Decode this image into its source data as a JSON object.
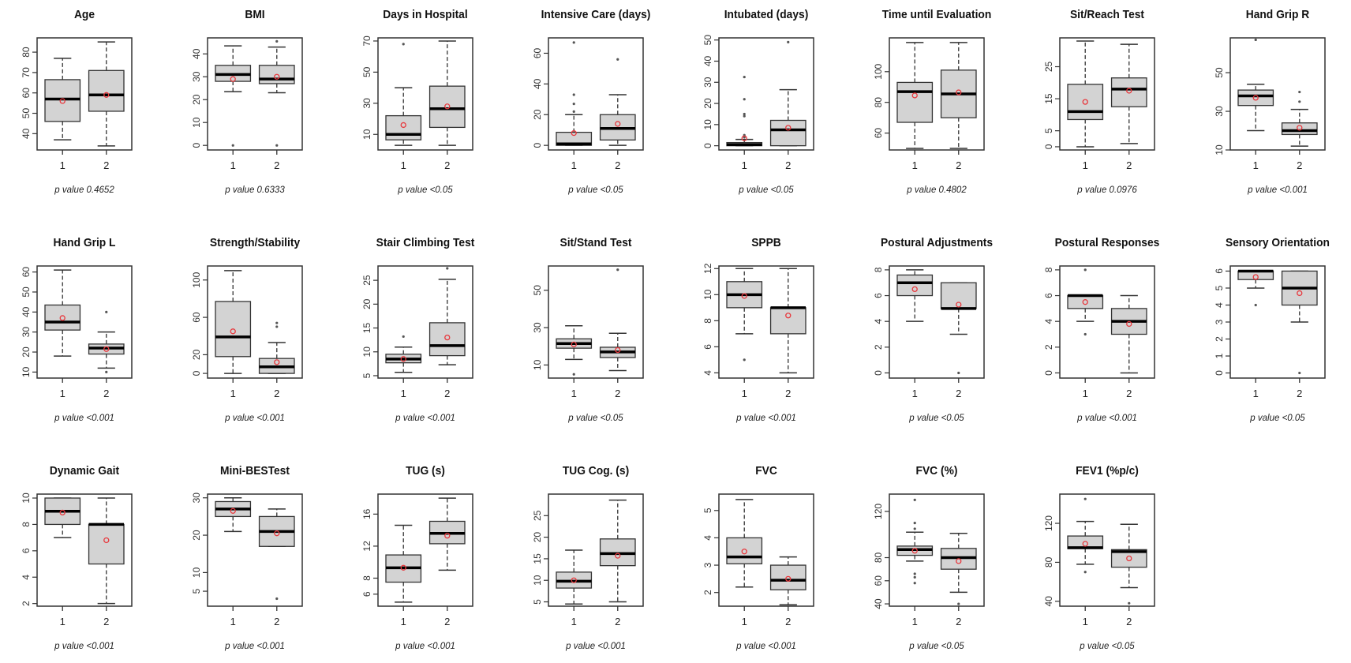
{
  "colors": {
    "box_fill": "#d3d3d3",
    "outline": "#333333",
    "median": "#000000",
    "mean_marker": "#e8383d",
    "outlier": "#555555"
  },
  "chart_data": [
    {
      "type": "box",
      "title": "Age",
      "p_value_label": "p value 0.4652",
      "categories": [
        "1",
        "2"
      ],
      "ylim": [
        32,
        87
      ],
      "yticks": [
        40,
        50,
        60,
        70,
        80
      ],
      "groups": [
        {
          "whisker_low": 37,
          "q1": 46,
          "median": 57,
          "q3": 66.5,
          "whisker_high": 77,
          "outliers": [],
          "mean": 56
        },
        {
          "whisker_low": 34,
          "q1": 51,
          "median": 59,
          "q3": 71,
          "whisker_high": 85,
          "outliers": [],
          "mean": 59
        }
      ]
    },
    {
      "type": "box",
      "title": "BMI",
      "p_value_label": "p value 0.6333",
      "categories": [
        "1",
        "2"
      ],
      "ylim": [
        -2,
        47
      ],
      "yticks": [
        0,
        10,
        20,
        30,
        40
      ],
      "groups": [
        {
          "whisker_low": 23.5,
          "q1": 28,
          "median": 31,
          "q3": 35,
          "whisker_high": 43.5,
          "outliers": [
            0
          ],
          "mean": 29
        },
        {
          "whisker_low": 23,
          "q1": 27,
          "median": 29,
          "q3": 35,
          "whisker_high": 43,
          "outliers": [
            0,
            45.5
          ],
          "mean": 30
        }
      ]
    },
    {
      "type": "box",
      "title": "Days in Hospital",
      "p_value_label": "p value <0.05",
      "categories": [
        "1",
        "2"
      ],
      "ylim": [
        0,
        72
      ],
      "yticks": [
        10,
        30,
        50,
        70
      ],
      "groups": [
        {
          "whisker_low": 3,
          "q1": 6.5,
          "median": 10,
          "q3": 22,
          "whisker_high": 40,
          "outliers": [
            68
          ],
          "mean": 16
        },
        {
          "whisker_low": 3,
          "q1": 14.5,
          "median": 26.5,
          "q3": 41,
          "whisker_high": 70,
          "outliers": [],
          "mean": 28
        }
      ]
    },
    {
      "type": "box",
      "title": "Intensive Care (days)",
      "p_value_label": "p value <0.05",
      "categories": [
        "1",
        "2"
      ],
      "ylim": [
        -3,
        70
      ],
      "yticks": [
        0,
        20,
        40,
        60
      ],
      "groups": [
        {
          "whisker_low": 0,
          "q1": 0,
          "median": 1,
          "q3": 8.5,
          "whisker_high": 20,
          "outliers": [
            22,
            27,
            33,
            67
          ],
          "mean": 8
        },
        {
          "whisker_low": 0,
          "q1": 3.5,
          "median": 11,
          "q3": 20,
          "whisker_high": 33,
          "outliers": [
            56
          ],
          "mean": 14
        }
      ]
    },
    {
      "type": "box",
      "title": "Intubated (days)",
      "p_value_label": "p value <0.05",
      "categories": [
        "1",
        "2"
      ],
      "ylim": [
        -2,
        51
      ],
      "yticks": [
        0,
        10,
        20,
        30,
        40,
        50
      ],
      "groups": [
        {
          "whisker_low": 0,
          "q1": 0,
          "median": 0.5,
          "q3": 1.5,
          "whisker_high": 3,
          "outliers": [
            4,
            5,
            14,
            15,
            22,
            32.5
          ],
          "mean": 3.5
        },
        {
          "whisker_low": 0,
          "q1": 0,
          "median": 7.5,
          "q3": 12,
          "whisker_high": 26.5,
          "outliers": [
            49
          ],
          "mean": 8.5
        }
      ]
    },
    {
      "type": "box",
      "title": "Time until Evaluation",
      "p_value_label": "p value 0.4802",
      "categories": [
        "1",
        "2"
      ],
      "ylim": [
        49,
        122
      ],
      "yticks": [
        60,
        80,
        100
      ],
      "groups": [
        {
          "whisker_low": 50,
          "q1": 67,
          "median": 87,
          "q3": 93,
          "whisker_high": 119,
          "outliers": [],
          "mean": 84.5
        },
        {
          "whisker_low": 50,
          "q1": 70,
          "median": 85.5,
          "q3": 101,
          "whisker_high": 119,
          "outliers": [],
          "mean": 86.5
        }
      ]
    },
    {
      "type": "box",
      "title": "Sit/Reach Test",
      "p_value_label": "p value 0.0976",
      "categories": [
        "1",
        "2"
      ],
      "ylim": [
        -1,
        34
      ],
      "yticks": [
        0,
        5,
        15,
        25
      ],
      "groups": [
        {
          "whisker_low": 0,
          "q1": 8.5,
          "median": 11,
          "q3": 19.5,
          "whisker_high": 33,
          "outliers": [],
          "mean": 14
        },
        {
          "whisker_low": 1,
          "q1": 12.5,
          "median": 18,
          "q3": 21.5,
          "whisker_high": 32,
          "outliers": [],
          "mean": 17.5
        }
      ]
    },
    {
      "type": "box",
      "title": "Hand Grip R",
      "p_value_label": "p value <0.001",
      "categories": [
        "1",
        "2"
      ],
      "ylim": [
        10,
        68
      ],
      "yticks": [
        10,
        30,
        50
      ],
      "groups": [
        {
          "whisker_low": 20,
          "q1": 33,
          "median": 38,
          "q3": 41,
          "whisker_high": 44,
          "outliers": [
            67
          ],
          "mean": 37
        },
        {
          "whisker_low": 12,
          "q1": 18,
          "median": 20,
          "q3": 24,
          "whisker_high": 31,
          "outliers": [
            35,
            40
          ],
          "mean": 21.5
        }
      ]
    },
    {
      "type": "box",
      "title": "Hand Grip L",
      "p_value_label": "p value <0.001",
      "categories": [
        "1",
        "2"
      ],
      "ylim": [
        7,
        63
      ],
      "yticks": [
        10,
        20,
        30,
        40,
        50,
        60
      ],
      "groups": [
        {
          "whisker_low": 18,
          "q1": 31,
          "median": 35,
          "q3": 43.5,
          "whisker_high": 61,
          "outliers": [],
          "mean": 37
        },
        {
          "whisker_low": 12,
          "q1": 19,
          "median": 22,
          "q3": 24,
          "whisker_high": 30,
          "outliers": [
            10,
            40
          ],
          "mean": 21.5
        }
      ]
    },
    {
      "type": "box",
      "title": "Strength/Stability",
      "p_value_label": "p value <0.001",
      "categories": [
        "1",
        "2"
      ],
      "ylim": [
        -5,
        115
      ],
      "yticks": [
        0,
        20,
        60,
        100
      ],
      "groups": [
        {
          "whisker_low": 0,
          "q1": 18,
          "median": 39,
          "q3": 77,
          "whisker_high": 110,
          "outliers": [],
          "mean": 45
        },
        {
          "whisker_low": 0,
          "q1": 0,
          "median": 7,
          "q3": 16,
          "whisker_high": 33,
          "outliers": [
            50,
            54
          ],
          "mean": 12
        }
      ]
    },
    {
      "type": "box",
      "title": "Stair Climbing Test",
      "p_value_label": "p value <0.001",
      "categories": [
        "1",
        "2"
      ],
      "ylim": [
        4.5,
        28
      ],
      "yticks": [
        5,
        10,
        15,
        20,
        25
      ],
      "groups": [
        {
          "whisker_low": 5.7,
          "q1": 7.7,
          "median": 8.5,
          "q3": 9.5,
          "whisker_high": 11,
          "outliers": [
            13.2
          ],
          "mean": 8.5
        },
        {
          "whisker_low": 7.3,
          "q1": 9.2,
          "median": 11.3,
          "q3": 16.1,
          "whisker_high": 25.2,
          "outliers": [
            27.5
          ],
          "mean": 13
        }
      ]
    },
    {
      "type": "box",
      "title": "Sit/Stand Test",
      "p_value_label": "p value <0.05",
      "categories": [
        "1",
        "2"
      ],
      "ylim": [
        3,
        63
      ],
      "yticks": [
        10,
        30,
        50
      ],
      "groups": [
        {
          "whisker_low": 13,
          "q1": 19,
          "median": 21.5,
          "q3": 24,
          "whisker_high": 31,
          "outliers": [
            5
          ],
          "mean": 21
        },
        {
          "whisker_low": 7,
          "q1": 14,
          "median": 17,
          "q3": 19.5,
          "whisker_high": 27,
          "outliers": [
            61
          ],
          "mean": 18
        }
      ]
    },
    {
      "type": "box",
      "title": "SPPB",
      "p_value_label": "p value <0.001",
      "categories": [
        "1",
        "2"
      ],
      "ylim": [
        3.6,
        12.2
      ],
      "yticks": [
        4,
        6,
        8,
        10,
        12
      ],
      "groups": [
        {
          "whisker_low": 7,
          "q1": 9,
          "median": 10,
          "q3": 11,
          "whisker_high": 12,
          "outliers": [
            5
          ],
          "mean": 9.9
        },
        {
          "whisker_low": 4,
          "q1": 7,
          "median": 9,
          "q3": 9,
          "whisker_high": 12,
          "outliers": [],
          "mean": 8.4
        }
      ]
    },
    {
      "type": "box",
      "title": "Postural Adjustments",
      "p_value_label": "p value <0.05",
      "categories": [
        "1",
        "2"
      ],
      "ylim": [
        -0.4,
        8.3
      ],
      "yticks": [
        0,
        2,
        4,
        6,
        8
      ],
      "groups": [
        {
          "whisker_low": 4,
          "q1": 6,
          "median": 7,
          "q3": 7.6,
          "whisker_high": 8,
          "outliers": [],
          "mean": 6.5
        },
        {
          "whisker_low": 3,
          "q1": 5,
          "median": 5,
          "q3": 7,
          "whisker_high": 7,
          "outliers": [
            0
          ],
          "mean": 5.3
        }
      ]
    },
    {
      "type": "box",
      "title": "Postural Responses",
      "p_value_label": "p value <0.001",
      "categories": [
        "1",
        "2"
      ],
      "ylim": [
        -0.4,
        8.3
      ],
      "yticks": [
        0,
        2,
        4,
        6,
        8
      ],
      "groups": [
        {
          "whisker_low": 4,
          "q1": 5,
          "median": 6,
          "q3": 6,
          "whisker_high": 6,
          "outliers": [
            3,
            8
          ],
          "mean": 5.5
        },
        {
          "whisker_low": 0,
          "q1": 3,
          "median": 4,
          "q3": 5,
          "whisker_high": 6,
          "outliers": [],
          "mean": 3.8
        }
      ]
    },
    {
      "type": "box",
      "title": "Sensory Orientation",
      "p_value_label": "p value <0.05",
      "categories": [
        "1",
        "2"
      ],
      "ylim": [
        -0.3,
        6.3
      ],
      "yticks": [
        0,
        1,
        2,
        3,
        4,
        5,
        6
      ],
      "groups": [
        {
          "whisker_low": 5,
          "q1": 5.5,
          "median": 6,
          "q3": 6,
          "whisker_high": 6,
          "outliers": [
            4
          ],
          "mean": 5.65
        },
        {
          "whisker_low": 3,
          "q1": 4,
          "median": 5,
          "q3": 6,
          "whisker_high": 6,
          "outliers": [
            0
          ],
          "mean": 4.7
        }
      ]
    },
    {
      "type": "box",
      "title": "Dynamic Gait",
      "p_value_label": "p value <0.001",
      "categories": [
        "1",
        "2"
      ],
      "ylim": [
        1.8,
        10.3
      ],
      "yticks": [
        2,
        4,
        6,
        8,
        10
      ],
      "groups": [
        {
          "whisker_low": 7,
          "q1": 8,
          "median": 9,
          "q3": 10,
          "whisker_high": 10,
          "outliers": [],
          "mean": 8.9
        },
        {
          "whisker_low": 2,
          "q1": 5,
          "median": 8,
          "q3": 8,
          "whisker_high": 10,
          "outliers": [],
          "mean": 6.8
        }
      ]
    },
    {
      "type": "box",
      "title": "Mini-BESTest",
      "p_value_label": "p value <0.001",
      "categories": [
        "1",
        "2"
      ],
      "ylim": [
        1,
        31
      ],
      "yticks": [
        5,
        10,
        20,
        30
      ],
      "groups": [
        {
          "whisker_low": 21,
          "q1": 25,
          "median": 27,
          "q3": 29,
          "whisker_high": 30,
          "outliers": [],
          "mean": 26.5
        },
        {
          "whisker_low": 17,
          "q1": 17,
          "median": 21,
          "q3": 25,
          "whisker_high": 27,
          "outliers": [
            3
          ],
          "mean": 20.5
        }
      ]
    },
    {
      "type": "box",
      "title": "TUG (s)",
      "p_value_label": "p value <0.001",
      "categories": [
        "1",
        "2"
      ],
      "ylim": [
        4.5,
        18.5
      ],
      "yticks": [
        6,
        8,
        12,
        16
      ],
      "groups": [
        {
          "whisker_low": 5,
          "q1": 7.5,
          "median": 9.3,
          "q3": 10.9,
          "whisker_high": 14.6,
          "outliers": [],
          "mean": 9.3
        },
        {
          "whisker_low": 9,
          "q1": 12.3,
          "median": 13.6,
          "q3": 15.1,
          "whisker_high": 18,
          "outliers": [],
          "mean": 13.3
        }
      ]
    },
    {
      "type": "box",
      "title": "TUG Cog. (s)",
      "p_value_label": "p value <0.001",
      "categories": [
        "1",
        "2"
      ],
      "ylim": [
        4,
        30
      ],
      "yticks": [
        5,
        10,
        15,
        20,
        25
      ],
      "groups": [
        {
          "whisker_low": 4.5,
          "q1": 8.2,
          "median": 9.8,
          "q3": 11.9,
          "whisker_high": 17,
          "outliers": [],
          "mean": 10
        },
        {
          "whisker_low": 5,
          "q1": 13.4,
          "median": 16.2,
          "q3": 19.6,
          "whisker_high": 28.6,
          "outliers": [],
          "mean": 15.7
        }
      ]
    },
    {
      "type": "box",
      "title": "FVC",
      "p_value_label": "p value <0.001",
      "categories": [
        "1",
        "2"
      ],
      "ylim": [
        1.5,
        5.6
      ],
      "yticks": [
        2,
        3,
        4,
        5
      ],
      "groups": [
        {
          "whisker_low": 2.2,
          "q1": 3.05,
          "median": 3.3,
          "q3": 4,
          "whisker_high": 5.4,
          "outliers": [],
          "mean": 3.5
        },
        {
          "whisker_low": 1.55,
          "q1": 2.1,
          "median": 2.45,
          "q3": 3,
          "whisker_high": 3.3,
          "outliers": [],
          "mean": 2.5
        }
      ]
    },
    {
      "type": "box",
      "title": "FVC (%)",
      "p_value_label": "p value <0.05",
      "categories": [
        "1",
        "2"
      ],
      "ylim": [
        38,
        135
      ],
      "yticks": [
        40,
        60,
        80,
        120
      ],
      "groups": [
        {
          "whisker_low": 77,
          "q1": 82,
          "median": 87,
          "q3": 90,
          "whisker_high": 102,
          "outliers": [
            58,
            63,
            66,
            105,
            110,
            130
          ],
          "mean": 86
        },
        {
          "whisker_low": 50,
          "q1": 70,
          "median": 80,
          "q3": 88,
          "whisker_high": 101,
          "outliers": [
            40
          ],
          "mean": 77
        }
      ]
    },
    {
      "type": "box",
      "title": "FEV1 (%p/c)",
      "p_value_label": "p value <0.05",
      "categories": [
        "1",
        "2"
      ],
      "ylim": [
        35,
        150
      ],
      "yticks": [
        40,
        80,
        120
      ],
      "groups": [
        {
          "whisker_low": 78,
          "q1": 94,
          "median": 95,
          "q3": 107,
          "whisker_high": 122,
          "outliers": [
            70,
            145
          ],
          "mean": 99
        },
        {
          "whisker_low": 54,
          "q1": 75,
          "median": 91,
          "q3": 93,
          "whisker_high": 119,
          "outliers": [
            38
          ],
          "mean": 84
        }
      ]
    }
  ]
}
